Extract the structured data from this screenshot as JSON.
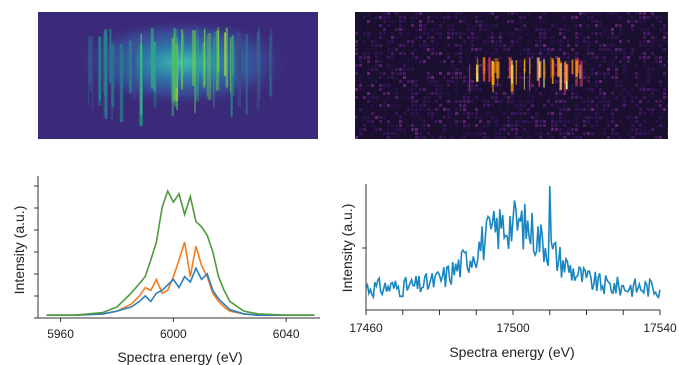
{
  "colors": {
    "viridis_bg": "#3b2a7a",
    "magma_bg": "#1a0f2e",
    "orange": "#f47c20",
    "blue": "#2a7fc1",
    "green": "#4e9a3c",
    "right_line": "#1a86c0"
  },
  "chart_data": [
    {
      "type": "heatmap",
      "colormap": "viridis",
      "description_key": "left-spectrometer-image"
    },
    {
      "type": "heatmap",
      "colormap": "magma",
      "description_key": "right-spectrometer-image"
    },
    {
      "type": "line",
      "x_axis": {
        "label": "Spectra energy (eV)",
        "ticks": [
          5960,
          6000,
          6040
        ],
        "range": [
          5952,
          6052
        ]
      },
      "y_axis": {
        "label": "Intensity (a.u.)",
        "range": [
          0,
          1.0
        ]
      },
      "x": [
        5955,
        5965,
        5975,
        5980,
        5985,
        5988,
        5990,
        5992,
        5994,
        5996,
        5998,
        6000,
        6002,
        6004,
        6006,
        6008,
        6010,
        6012,
        6014,
        6016,
        6018,
        6020,
        6025,
        6030,
        6040,
        6050
      ],
      "series": [
        {
          "color": "orange",
          "values": [
            0.02,
            0.02,
            0.03,
            0.05,
            0.1,
            0.16,
            0.22,
            0.2,
            0.28,
            0.18,
            0.2,
            0.3,
            0.42,
            0.55,
            0.3,
            0.52,
            0.38,
            0.3,
            0.18,
            0.12,
            0.08,
            0.05,
            0.03,
            0.02,
            0.02,
            0.02
          ]
        },
        {
          "color": "blue",
          "values": [
            0.02,
            0.02,
            0.03,
            0.05,
            0.08,
            0.12,
            0.16,
            0.12,
            0.18,
            0.2,
            0.24,
            0.28,
            0.22,
            0.3,
            0.26,
            0.36,
            0.28,
            0.32,
            0.2,
            0.14,
            0.1,
            0.06,
            0.03,
            0.02,
            0.02,
            0.02
          ]
        },
        {
          "color": "green",
          "values": [
            0.02,
            0.02,
            0.04,
            0.08,
            0.18,
            0.25,
            0.3,
            0.42,
            0.55,
            0.8,
            0.92,
            0.84,
            0.9,
            0.75,
            0.88,
            0.7,
            0.66,
            0.6,
            0.48,
            0.3,
            0.2,
            0.12,
            0.05,
            0.03,
            0.02,
            0.02
          ]
        }
      ]
    },
    {
      "type": "line",
      "x_axis": {
        "label": "Spectra energy (eV)",
        "ticks": [
          17460,
          17500,
          17540
        ],
        "range": [
          17460,
          17540
        ]
      },
      "y_axis": {
        "label": "Intensity (a.u.)",
        "range": [
          0,
          1.0
        ]
      },
      "series": [
        {
          "color": "right_line",
          "envelope": {
            "center": 17500,
            "width": 14,
            "base": 0.18,
            "peak": 0.52
          },
          "spike": {
            "x": 17510,
            "y": 1.0
          }
        }
      ]
    }
  ]
}
